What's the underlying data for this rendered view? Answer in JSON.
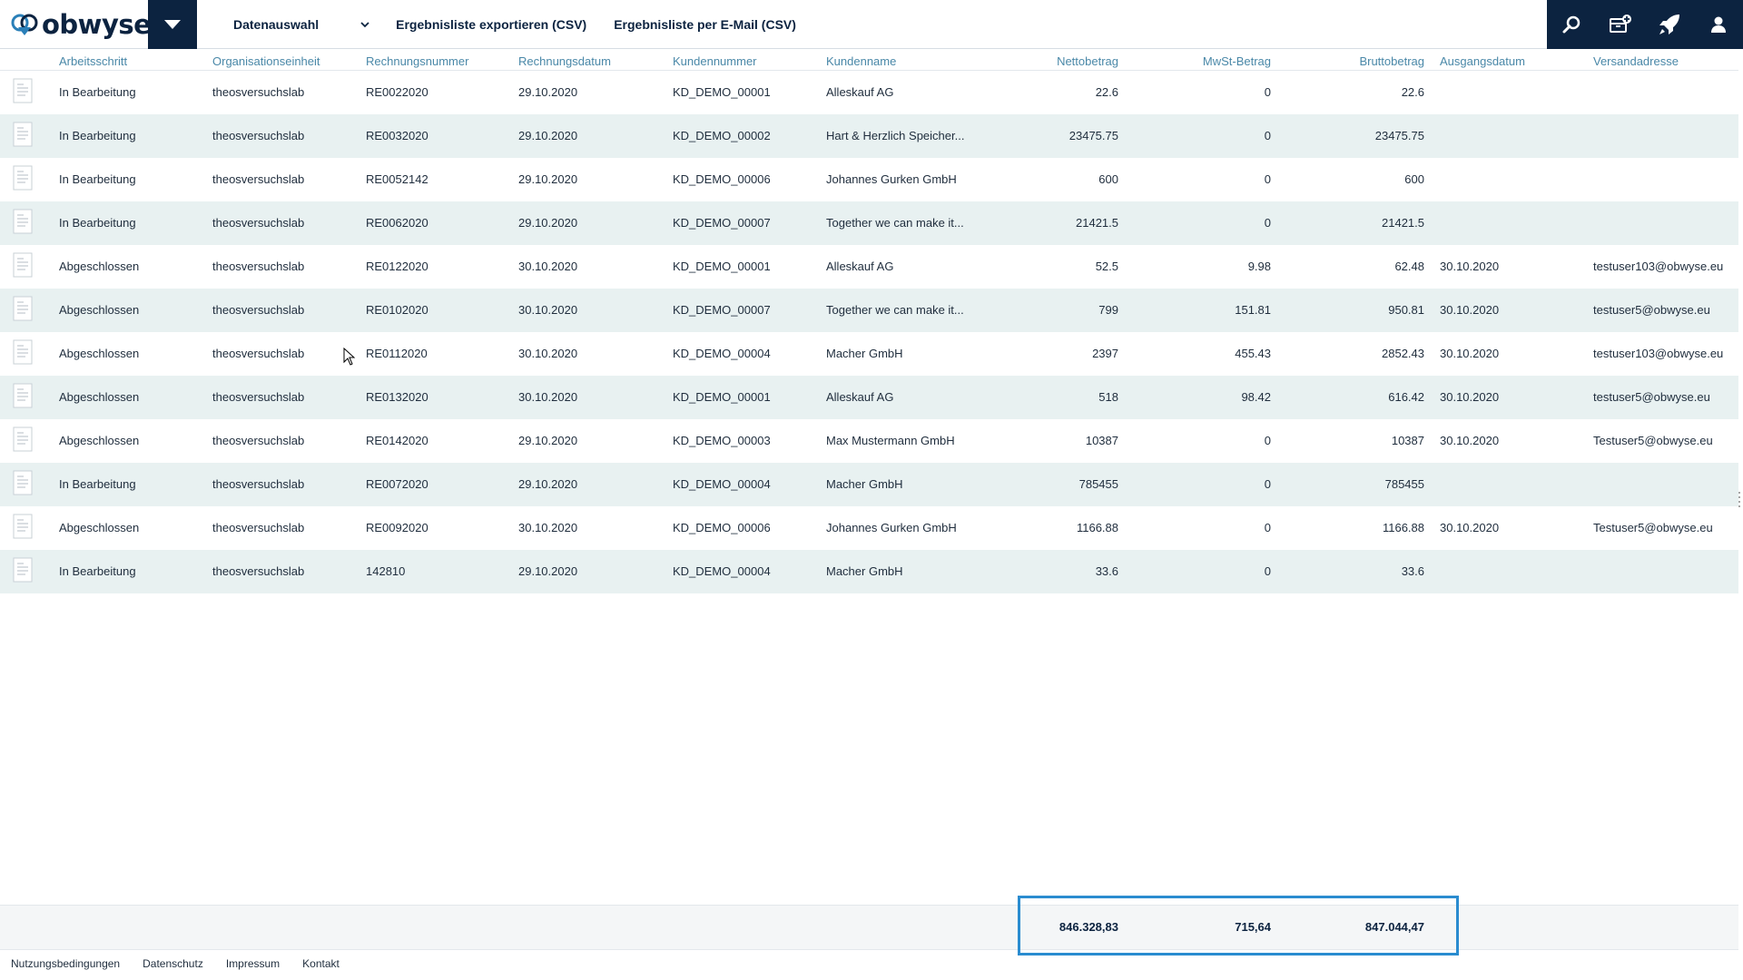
{
  "header": {
    "logo_text": "obwyse",
    "nav": {
      "datenauswahl": "Datenauswahl",
      "export_csv": "Ergebnisliste exportieren (CSV)",
      "email_csv": "Ergebnisliste per E-Mail (CSV)"
    },
    "icons": [
      "search-icon",
      "archive-add-icon",
      "rocket-icon",
      "user-icon"
    ]
  },
  "table": {
    "headers": [
      "Arbeitsschritt",
      "Organisationseinheit",
      "Rechnungsnummer",
      "Rechnungsdatum",
      "Kundennummer",
      "Kundenname",
      "Nettobetrag",
      "MwSt-Betrag",
      "Bruttobetrag",
      "Ausgangsdatum",
      "Versandadresse"
    ],
    "rows": [
      [
        "In Bearbeitung",
        "theosversuchslab",
        "RE0022020",
        "29.10.2020",
        "KD_DEMO_00001",
        "Alleskauf AG",
        "22.6",
        "0",
        "22.6",
        "",
        ""
      ],
      [
        "In Bearbeitung",
        "theosversuchslab",
        "RE0032020",
        "29.10.2020",
        "KD_DEMO_00002",
        "Hart & Herzlich Speicher...",
        "23475.75",
        "0",
        "23475.75",
        "",
        ""
      ],
      [
        "In Bearbeitung",
        "theosversuchslab",
        "RE0052142",
        "29.10.2020",
        "KD_DEMO_00006",
        "Johannes Gurken GmbH",
        "600",
        "0",
        "600",
        "",
        ""
      ],
      [
        "In Bearbeitung",
        "theosversuchslab",
        "RE0062020",
        "29.10.2020",
        "KD_DEMO_00007",
        "Together we can make it...",
        "21421.5",
        "0",
        "21421.5",
        "",
        ""
      ],
      [
        "Abgeschlossen",
        "theosversuchslab",
        "RE0122020",
        "30.10.2020",
        "KD_DEMO_00001",
        "Alleskauf AG",
        "52.5",
        "9.98",
        "62.48",
        "30.10.2020",
        "testuser103@obwyse.eu"
      ],
      [
        "Abgeschlossen",
        "theosversuchslab",
        "RE0102020",
        "30.10.2020",
        "KD_DEMO_00007",
        "Together we can make it...",
        "799",
        "151.81",
        "950.81",
        "30.10.2020",
        "testuser5@obwyse.eu"
      ],
      [
        "Abgeschlossen",
        "theosversuchslab",
        "RE0112020",
        "30.10.2020",
        "KD_DEMO_00004",
        "Macher GmbH",
        "2397",
        "455.43",
        "2852.43",
        "30.10.2020",
        "testuser103@obwyse.eu"
      ],
      [
        "Abgeschlossen",
        "theosversuchslab",
        "RE0132020",
        "30.10.2020",
        "KD_DEMO_00001",
        "Alleskauf AG",
        "518",
        "98.42",
        "616.42",
        "30.10.2020",
        "testuser5@obwyse.eu"
      ],
      [
        "Abgeschlossen",
        "theosversuchslab",
        "RE0142020",
        "29.10.2020",
        "KD_DEMO_00003",
        "Max Mustermann GmbH",
        "10387",
        "0",
        "10387",
        "30.10.2020",
        "Testuser5@obwyse.eu"
      ],
      [
        "In Bearbeitung",
        "theosversuchslab",
        "RE0072020",
        "29.10.2020",
        "KD_DEMO_00004",
        "Macher GmbH",
        "785455",
        "0",
        "785455",
        "",
        ""
      ],
      [
        "Abgeschlossen",
        "theosversuchslab",
        "RE0092020",
        "30.10.2020",
        "KD_DEMO_00006",
        "Johannes Gurken GmbH",
        "1166.88",
        "0",
        "1166.88",
        "30.10.2020",
        "Testuser5@obwyse.eu"
      ],
      [
        "In Bearbeitung",
        "theosversuchslab",
        "142810",
        "29.10.2020",
        "KD_DEMO_00004",
        "Macher GmbH",
        "33.6",
        "0",
        "33.6",
        "",
        ""
      ]
    ]
  },
  "totals": {
    "netto": "846.328,83",
    "mwst": "715,64",
    "brutto": "847.044,47"
  },
  "footer": {
    "links": [
      "Nutzungsbedingungen",
      "Datenschutz",
      "Impressum",
      "Kontakt"
    ]
  },
  "colors": {
    "brand_navy": "#0c2340",
    "header_text": "#4a88a8",
    "alt_row": "#e8f1f1",
    "highlight": "#2a8cd0"
  }
}
